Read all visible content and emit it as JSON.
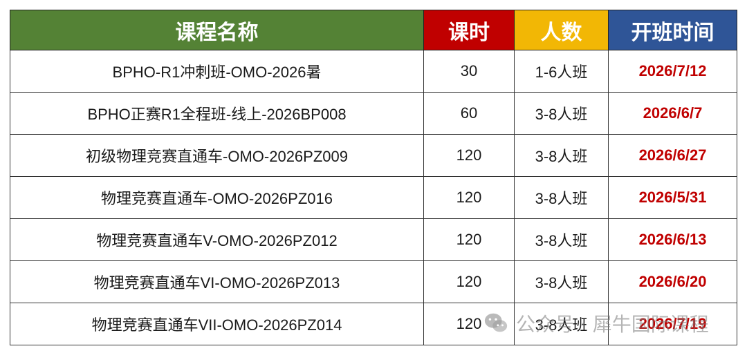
{
  "table": {
    "headers": {
      "name": "课程名称",
      "hours": "课时",
      "size": "人数",
      "start": "开班时间"
    },
    "rows": [
      {
        "name": "BPHO-R1冲刺班-OMO-2026暑",
        "hours": "30",
        "size": "1-6人班",
        "start": "2026/7/12"
      },
      {
        "name": "BPHO正赛R1全程班-线上-2026BP008",
        "hours": "60",
        "size": "3-8人班",
        "start": "2026/6/7"
      },
      {
        "name": "初级物理竞赛直通车-OMO-2026PZ009",
        "hours": "120",
        "size": "3-8人班",
        "start": "2026/6/27"
      },
      {
        "name": "物理竞赛直通车-OMO-2026PZ016",
        "hours": "120",
        "size": "3-8人班",
        "start": "2026/5/31"
      },
      {
        "name": "物理竞赛直通车V-OMO-2026PZ012",
        "hours": "120",
        "size": "3-8人班",
        "start": "2026/6/13"
      },
      {
        "name": "物理竞赛直通车VI-OMO-2026PZ013",
        "hours": "120",
        "size": "3-8人班",
        "start": "2026/6/20"
      },
      {
        "name": "物理竞赛直通车VII-OMO-2026PZ014",
        "hours": "120",
        "size": "3-8人班",
        "start": "2026/7/19"
      }
    ]
  },
  "watermark": {
    "text": "公众号 · 犀牛国际课程",
    "icon": "wechat-icon"
  },
  "colors": {
    "header_name": "#548235",
    "header_hours": "#c00000",
    "header_size": "#f2b705",
    "header_start": "#2f5597",
    "date_text": "#c00000"
  }
}
